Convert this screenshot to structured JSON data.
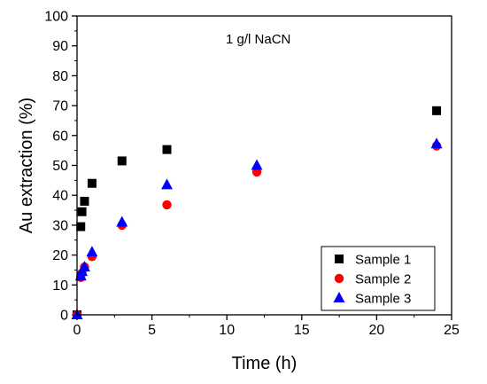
{
  "chart_data": {
    "type": "scatter",
    "title": "",
    "annotation": "1 g/l NaCN",
    "xlabel": "Time (h)",
    "ylabel": "Au extraction (%)",
    "xlim": [
      0,
      25
    ],
    "ylim": [
      0,
      100
    ],
    "xticks": [
      0,
      5,
      10,
      15,
      20,
      25
    ],
    "yticks": [
      0,
      10,
      20,
      30,
      40,
      50,
      60,
      70,
      80,
      90,
      100
    ],
    "grid": false,
    "legend_position": "bottom-right",
    "series": [
      {
        "name": "Sample 1",
        "marker": "square",
        "color": "#000000",
        "points": [
          [
            0,
            0
          ],
          [
            0.25,
            29.5
          ],
          [
            0.33,
            34.5
          ],
          [
            0.5,
            38
          ],
          [
            1,
            44
          ],
          [
            3,
            51.5
          ],
          [
            6,
            55.3
          ],
          [
            24,
            68.3
          ]
        ]
      },
      {
        "name": "Sample 2",
        "marker": "circle",
        "color": "#ff0000",
        "points": [
          [
            0,
            0
          ],
          [
            0.25,
            12.5
          ],
          [
            0.33,
            14
          ],
          [
            0.5,
            16
          ],
          [
            1,
            19.5
          ],
          [
            3,
            30
          ],
          [
            6,
            36.8
          ],
          [
            12,
            47.8
          ],
          [
            24,
            56.5
          ]
        ]
      },
      {
        "name": "Sample 3",
        "marker": "triangle",
        "color": "#0000ff",
        "points": [
          [
            0,
            0
          ],
          [
            0.25,
            13
          ],
          [
            0.33,
            14.5
          ],
          [
            0.5,
            16
          ],
          [
            1,
            21
          ],
          [
            3,
            31
          ],
          [
            6,
            43.5
          ],
          [
            12,
            50
          ],
          [
            24,
            57.2
          ]
        ]
      }
    ]
  }
}
